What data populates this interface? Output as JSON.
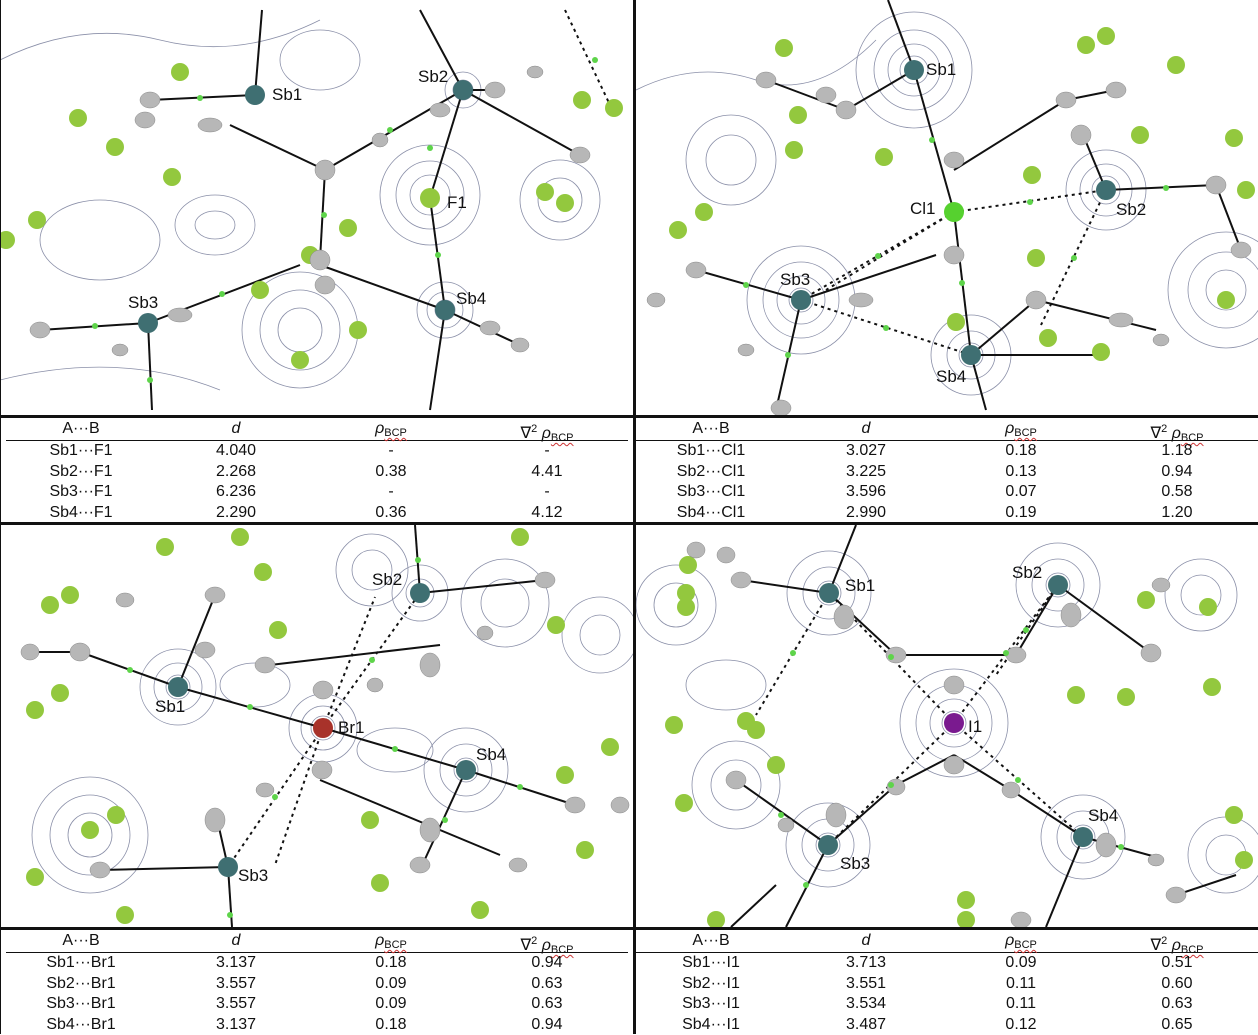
{
  "colors": {
    "contour": "#8a8fa8",
    "bond": "#111111",
    "sb": "#3f6f72",
    "f": "#93c83e",
    "cl": "#56d12f",
    "br": "#a8322a",
    "i": "#7a1a8f",
    "c": "#b7b7b7",
    "bcp": "#5ed44a"
  },
  "panels": [
    {
      "id": "F",
      "labels": {
        "sb1": "Sb1",
        "sb2": "Sb2",
        "sb3": "Sb3",
        "sb4": "Sb4",
        "x": "F1"
      },
      "table": {
        "headers": {
          "ab": "A···B",
          "d": "d",
          "rho": "ρ",
          "rho_sub": "BCP",
          "lap": "∇",
          "lap_sup": "2",
          "lap_rho": "ρ",
          "lap_sub": "BCP"
        },
        "rows": [
          {
            "ab": "Sb1···F1",
            "d": "4.040",
            "rho": "-",
            "lap": "-"
          },
          {
            "ab": "Sb2···F1",
            "d": "2.268",
            "rho": "0.38",
            "lap": "4.41"
          },
          {
            "ab": "Sb3···F1",
            "d": "6.236",
            "rho": "-",
            "lap": "-"
          },
          {
            "ab": "Sb4···F1",
            "d": "2.290",
            "rho": "0.36",
            "lap": "4.12"
          }
        ]
      }
    },
    {
      "id": "Cl",
      "labels": {
        "sb1": "Sb1",
        "sb2": "Sb2",
        "sb3": "Sb3",
        "sb4": "Sb4",
        "x": "Cl1"
      },
      "table": {
        "headers": {
          "ab": "A···B",
          "d": "d",
          "rho": "ρ",
          "rho_sub": "BCP",
          "lap": "∇",
          "lap_sup": "2",
          "lap_rho": "ρ",
          "lap_sub": "BCP"
        },
        "rows": [
          {
            "ab": "Sb1···Cl1",
            "d": "3.027",
            "rho": "0.18",
            "lap": "1.18"
          },
          {
            "ab": "Sb2···Cl1",
            "d": "3.225",
            "rho": "0.13",
            "lap": "0.94"
          },
          {
            "ab": "Sb3···Cl1",
            "d": "3.596",
            "rho": "0.07",
            "lap": "0.58"
          },
          {
            "ab": "Sb4···Cl1",
            "d": "2.990",
            "rho": "0.19",
            "lap": "1.20"
          }
        ]
      }
    },
    {
      "id": "Br",
      "labels": {
        "sb1": "Sb1",
        "sb2": "Sb2",
        "sb3": "Sb3",
        "sb4": "Sb4",
        "x": "Br1"
      },
      "table": {
        "headers": {
          "ab": "A···B",
          "d": "d",
          "rho": "ρ",
          "rho_sub": "BCP",
          "lap": "∇",
          "lap_sup": "2",
          "lap_rho": "ρ",
          "lap_sub": "BCP"
        },
        "rows": [
          {
            "ab": "Sb1···Br1",
            "d": "3.137",
            "rho": "0.18",
            "lap": "0.94"
          },
          {
            "ab": "Sb2···Br1",
            "d": "3.557",
            "rho": "0.09",
            "lap": "0.63"
          },
          {
            "ab": "Sb3···Br1",
            "d": "3.557",
            "rho": "0.09",
            "lap": "0.63"
          },
          {
            "ab": "Sb4···Br1",
            "d": "3.137",
            "rho": "0.18",
            "lap": "0.94"
          }
        ]
      }
    },
    {
      "id": "I",
      "labels": {
        "sb1": "Sb1",
        "sb2": "Sb2",
        "sb3": "Sb3",
        "sb4": "Sb4",
        "x": "I1"
      },
      "table": {
        "headers": {
          "ab": "A···B",
          "d": "d",
          "rho": "ρ",
          "rho_sub": "BCP",
          "lap": "∇",
          "lap_sup": "2",
          "lap_rho": "ρ",
          "lap_sub": "BCP"
        },
        "rows": [
          {
            "ab": "Sb1···I1",
            "d": "3.713",
            "rho": "0.09",
            "lap": "0.51"
          },
          {
            "ab": "Sb2···I1",
            "d": "3.551",
            "rho": "0.11",
            "lap": "0.60"
          },
          {
            "ab": "Sb3···I1",
            "d": "3.534",
            "rho": "0.11",
            "lap": "0.63"
          },
          {
            "ab": "Sb4···I1",
            "d": "3.487",
            "rho": "0.12",
            "lap": "0.65"
          }
        ]
      }
    }
  ]
}
